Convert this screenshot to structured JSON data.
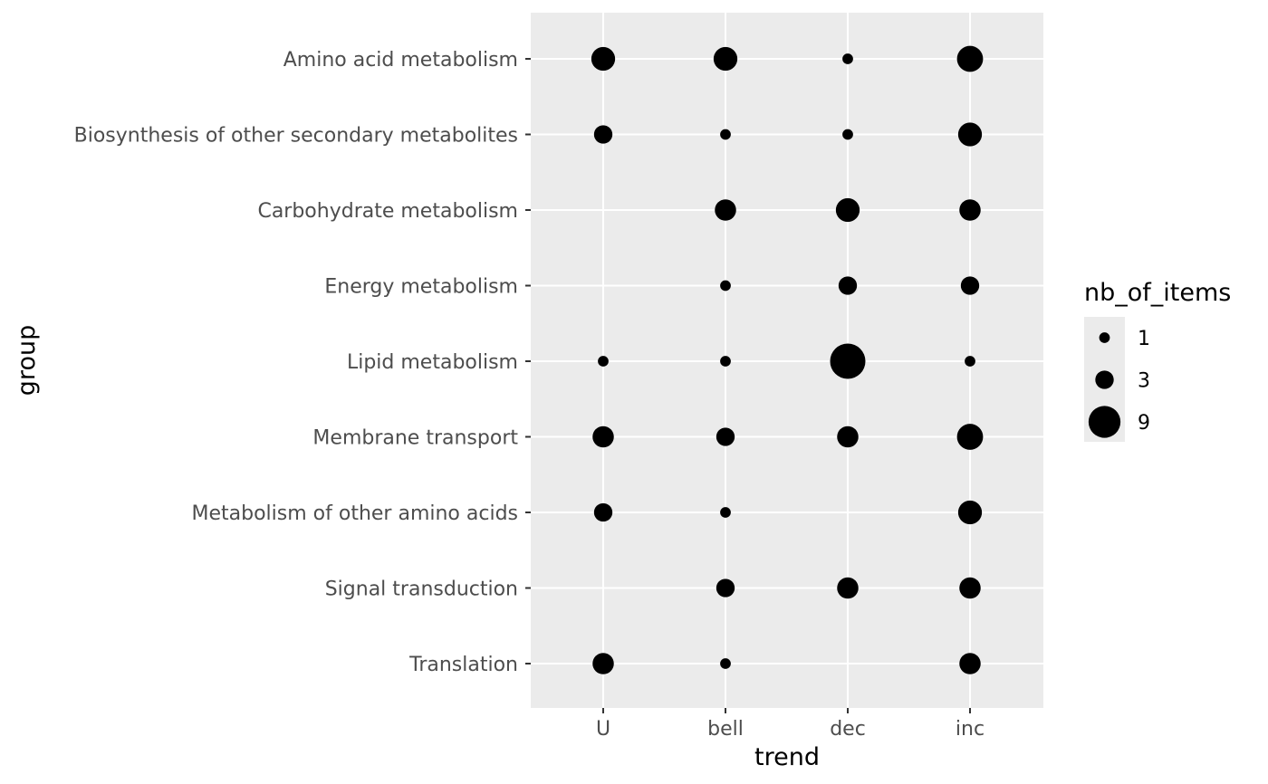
{
  "chart_data": {
    "type": "scatter",
    "xlabel": "trend",
    "ylabel": "group",
    "x_categories": [
      "U",
      "bell",
      "dec",
      "inc"
    ],
    "y_categories": [
      "Amino acid metabolism",
      "Biosynthesis of other secondary metabolites",
      "Carbohydrate metabolism",
      "Energy metabolism",
      "Lipid metabolism",
      "Membrane transport",
      "Metabolism of other amino acids",
      "Signal transduction",
      "Translation"
    ],
    "size_variable": "nb_of_items",
    "points": [
      {
        "group": "Amino acid metabolism",
        "trend": "U",
        "nb_of_items": 5
      },
      {
        "group": "Amino acid metabolism",
        "trend": "bell",
        "nb_of_items": 5
      },
      {
        "group": "Amino acid metabolism",
        "trend": "dec",
        "nb_of_items": 1
      },
      {
        "group": "Amino acid metabolism",
        "trend": "inc",
        "nb_of_items": 6
      },
      {
        "group": "Biosynthesis of other secondary metabolites",
        "trend": "U",
        "nb_of_items": 3
      },
      {
        "group": "Biosynthesis of other secondary metabolites",
        "trend": "bell",
        "nb_of_items": 1
      },
      {
        "group": "Biosynthesis of other secondary metabolites",
        "trend": "dec",
        "nb_of_items": 1
      },
      {
        "group": "Biosynthesis of other secondary metabolites",
        "trend": "inc",
        "nb_of_items": 5
      },
      {
        "group": "Carbohydrate metabolism",
        "trend": "bell",
        "nb_of_items": 4
      },
      {
        "group": "Carbohydrate metabolism",
        "trend": "dec",
        "nb_of_items": 5
      },
      {
        "group": "Carbohydrate metabolism",
        "trend": "inc",
        "nb_of_items": 4
      },
      {
        "group": "Energy metabolism",
        "trend": "bell",
        "nb_of_items": 1
      },
      {
        "group": "Energy metabolism",
        "trend": "dec",
        "nb_of_items": 3
      },
      {
        "group": "Energy metabolism",
        "trend": "inc",
        "nb_of_items": 3
      },
      {
        "group": "Lipid metabolism",
        "trend": "U",
        "nb_of_items": 1
      },
      {
        "group": "Lipid metabolism",
        "trend": "bell",
        "nb_of_items": 1
      },
      {
        "group": "Lipid metabolism",
        "trend": "dec",
        "nb_of_items": 11
      },
      {
        "group": "Lipid metabolism",
        "trend": "inc",
        "nb_of_items": 1
      },
      {
        "group": "Membrane transport",
        "trend": "U",
        "nb_of_items": 4
      },
      {
        "group": "Membrane transport",
        "trend": "bell",
        "nb_of_items": 3
      },
      {
        "group": "Membrane transport",
        "trend": "dec",
        "nb_of_items": 4
      },
      {
        "group": "Membrane transport",
        "trend": "inc",
        "nb_of_items": 6
      },
      {
        "group": "Metabolism of other amino acids",
        "trend": "U",
        "nb_of_items": 3
      },
      {
        "group": "Metabolism of other amino acids",
        "trend": "bell",
        "nb_of_items": 1
      },
      {
        "group": "Metabolism of other amino acids",
        "trend": "inc",
        "nb_of_items": 5
      },
      {
        "group": "Signal transduction",
        "trend": "bell",
        "nb_of_items": 3
      },
      {
        "group": "Signal transduction",
        "trend": "dec",
        "nb_of_items": 4
      },
      {
        "group": "Signal transduction",
        "trend": "inc",
        "nb_of_items": 4
      },
      {
        "group": "Translation",
        "trend": "U",
        "nb_of_items": 4
      },
      {
        "group": "Translation",
        "trend": "bell",
        "nb_of_items": 1
      },
      {
        "group": "Translation",
        "trend": "inc",
        "nb_of_items": 4
      }
    ],
    "legend": {
      "title": "nb_of_items",
      "placement": "right",
      "breaks": [
        1,
        3,
        9
      ]
    },
    "grid": true,
    "colors": {
      "panel_background": "#ebebeb",
      "grid_line": "#ffffff",
      "point": "#000000",
      "tick_text": "#4d4d4d",
      "tick_mark": "#333333"
    }
  }
}
